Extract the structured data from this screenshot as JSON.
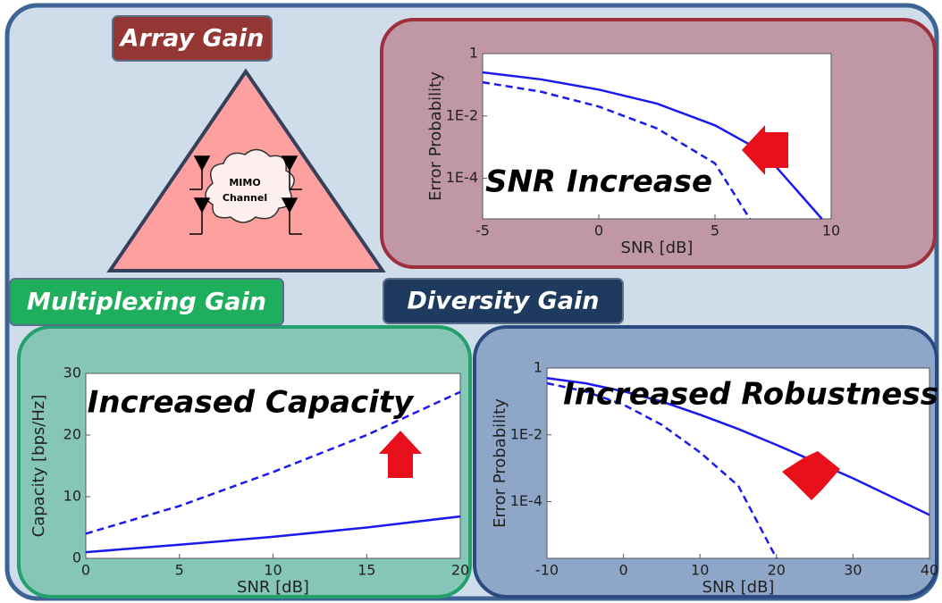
{
  "labels": {
    "array_gain": "Array Gain",
    "multiplexing_gain": "Multiplexing Gain",
    "diversity_gain": "Diversity Gain",
    "mimo_channel": [
      "MIMO",
      "Channel"
    ]
  },
  "chart_data": [
    {
      "type": "line",
      "annotation": "SNR Increase",
      "xlabel": "SNR [dB]",
      "ylabel": "Error Probability",
      "yscale": "log",
      "x": [
        -5,
        -2.5,
        0,
        2.5,
        5,
        6.5,
        7.5,
        9.6
      ],
      "series": [
        {
          "color": "#1a1aee",
          "linestyle": "solid",
          "values": [
            0.25,
            0.15,
            0.07,
            0.025,
            0.005,
            0.0012,
            0.0003,
            5e-06
          ]
        },
        {
          "color": "#1a1aee",
          "linestyle": "dashed",
          "values": [
            0.12,
            0.06,
            0.02,
            0.004,
            0.0003,
            5e-06,
            null,
            null
          ]
        }
      ],
      "xlim": [
        -5,
        10
      ],
      "xticks": [
        -5,
        0,
        5,
        10
      ],
      "ylim": [
        5e-06,
        1
      ],
      "yticks": [
        {
          "value": 0.0001,
          "label": "1E-4"
        },
        {
          "value": 0.01,
          "label": "1E-2"
        },
        1
      ]
    },
    {
      "type": "line",
      "annotation": "Increased Capacity",
      "xlabel": "SNR [dB]",
      "ylabel": "Capacity [bps/Hz]",
      "yscale": "linear",
      "x": [
        0,
        5,
        10,
        15,
        20
      ],
      "series": [
        {
          "color": "#1a1aee",
          "linestyle": "solid",
          "values": [
            1,
            2.2,
            3.5,
            5,
            6.8
          ]
        },
        {
          "color": "#1a1aee",
          "linestyle": "dashed",
          "values": [
            4,
            8.5,
            14,
            20,
            27
          ]
        }
      ],
      "xlim": [
        0,
        20
      ],
      "xticks": [
        0,
        5,
        10,
        15,
        20
      ],
      "ylim": [
        0,
        30
      ],
      "yticks": [
        0,
        10,
        20,
        30
      ]
    },
    {
      "type": "line",
      "annotation": "Increased Robustness",
      "xlabel": "SNR [dB]",
      "ylabel": "Error Probability",
      "yscale": "log",
      "x": [
        -10,
        -5,
        0,
        5,
        10,
        15,
        20,
        30,
        40
      ],
      "series": [
        {
          "color": "#1a1aee",
          "linestyle": "solid",
          "values": [
            0.5,
            0.35,
            0.2,
            0.1,
            0.04,
            0.015,
            0.005,
            0.0005,
            4e-05
          ]
        },
        {
          "color": "#1a1aee",
          "linestyle": "dashed",
          "values": [
            0.35,
            0.2,
            0.08,
            0.02,
            0.003,
            0.0003,
            2e-06,
            null,
            null
          ]
        }
      ],
      "xlim": [
        -10,
        40
      ],
      "xticks": [
        -10,
        0,
        10,
        20,
        30,
        40
      ],
      "ylim": [
        2e-06,
        1
      ],
      "yticks": [
        {
          "value": 0.0001,
          "label": "1E-4"
        },
        {
          "value": 0.01,
          "label": "1E-2"
        },
        1
      ]
    }
  ]
}
